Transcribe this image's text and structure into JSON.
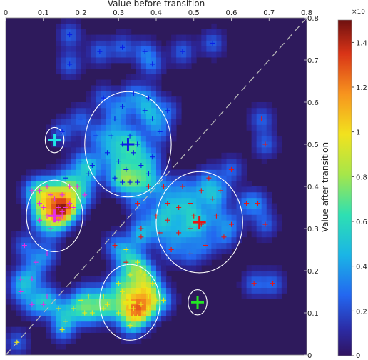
{
  "chart_data": {
    "type": "heatmap",
    "xlabel": "Value before transition",
    "ylabel": "Value after transition",
    "xlim": [
      0,
      0.8
    ],
    "ylim": [
      0,
      0.8
    ],
    "x_ticks": [
      "0",
      "0.1",
      "0.2",
      "0.3",
      "0.4",
      "0.5",
      "0.6",
      "0.7",
      "0.8"
    ],
    "y_ticks": [
      "0",
      "0.1",
      "0.2",
      "0.3",
      "0.4",
      "0.5",
      "0.6",
      "0.7",
      "0.8"
    ],
    "colorbar": {
      "ticks": [
        "0",
        "0.2",
        "0.4",
        "0.6",
        "0.8",
        "1",
        "1.2",
        "1.4"
      ],
      "multiplier_label": "×10",
      "range": [
        0,
        1.5
      ]
    },
    "diagonal": {
      "style": "dashed",
      "color": "#bbbbbb"
    },
    "series": [
      {
        "color": "#0a1ee6",
        "centroid": [
          0.325,
          0.5
        ],
        "circle_radius": [
          0.115,
          0.125
        ],
        "points": [
          [
            0.17,
            0.76
          ],
          [
            0.17,
            0.69
          ],
          [
            0.25,
            0.72
          ],
          [
            0.31,
            0.73
          ],
          [
            0.37,
            0.72
          ],
          [
            0.39,
            0.69
          ],
          [
            0.47,
            0.72
          ],
          [
            0.55,
            0.74
          ],
          [
            0.15,
            0.53
          ],
          [
            0.2,
            0.56
          ],
          [
            0.26,
            0.61
          ],
          [
            0.29,
            0.56
          ],
          [
            0.24,
            0.52
          ],
          [
            0.28,
            0.52
          ],
          [
            0.31,
            0.59
          ],
          [
            0.34,
            0.62
          ],
          [
            0.38,
            0.61
          ],
          [
            0.39,
            0.56
          ],
          [
            0.41,
            0.53
          ],
          [
            0.43,
            0.58
          ],
          [
            0.31,
            0.5
          ],
          [
            0.33,
            0.52
          ],
          [
            0.35,
            0.5
          ],
          [
            0.34,
            0.48
          ],
          [
            0.3,
            0.46
          ],
          [
            0.32,
            0.44
          ],
          [
            0.29,
            0.42
          ],
          [
            0.31,
            0.41
          ],
          [
            0.33,
            0.41
          ],
          [
            0.35,
            0.41
          ],
          [
            0.38,
            0.43
          ],
          [
            0.39,
            0.47
          ],
          [
            0.36,
            0.45
          ],
          [
            0.27,
            0.48
          ],
          [
            0.23,
            0.45
          ],
          [
            0.2,
            0.46
          ],
          [
            0.16,
            0.42
          ],
          [
            0.22,
            0.43
          ],
          [
            0.37,
            0.58
          ]
        ]
      },
      {
        "color": "#e61414",
        "centroid": [
          0.515,
          0.315
        ],
        "circle_radius": [
          0.115,
          0.12
        ],
        "points": [
          [
            0.68,
            0.56
          ],
          [
            0.69,
            0.5
          ],
          [
            0.6,
            0.44
          ],
          [
            0.54,
            0.42
          ],
          [
            0.55,
            0.37
          ],
          [
            0.52,
            0.39
          ],
          [
            0.47,
            0.4
          ],
          [
            0.42,
            0.4
          ],
          [
            0.38,
            0.4
          ],
          [
            0.43,
            0.36
          ],
          [
            0.46,
            0.35
          ],
          [
            0.5,
            0.33
          ],
          [
            0.52,
            0.31
          ],
          [
            0.49,
            0.3
          ],
          [
            0.46,
            0.29
          ],
          [
            0.43,
            0.32
          ],
          [
            0.4,
            0.33
          ],
          [
            0.41,
            0.29
          ],
          [
            0.36,
            0.3
          ],
          [
            0.35,
            0.36
          ],
          [
            0.36,
            0.28
          ],
          [
            0.44,
            0.25
          ],
          [
            0.49,
            0.24
          ],
          [
            0.53,
            0.26
          ],
          [
            0.58,
            0.28
          ],
          [
            0.6,
            0.31
          ],
          [
            0.56,
            0.33
          ],
          [
            0.57,
            0.39
          ],
          [
            0.64,
            0.36
          ],
          [
            0.67,
            0.36
          ],
          [
            0.69,
            0.31
          ],
          [
            0.66,
            0.17
          ],
          [
            0.71,
            0.17
          ],
          [
            0.29,
            0.26
          ],
          [
            0.32,
            0.22
          ],
          [
            0.49,
            0.36
          ]
        ]
      },
      {
        "color": "#e62de6",
        "centroid": [
          0.13,
          0.33
        ],
        "circle_radius": [
          0.075,
          0.085
        ],
        "points": [
          [
            0.07,
            0.39
          ],
          [
            0.09,
            0.39
          ],
          [
            0.11,
            0.4
          ],
          [
            0.12,
            0.38
          ],
          [
            0.13,
            0.37
          ],
          [
            0.15,
            0.38
          ],
          [
            0.17,
            0.4
          ],
          [
            0.19,
            0.4
          ],
          [
            0.21,
            0.38
          ],
          [
            0.1,
            0.35
          ],
          [
            0.11,
            0.33
          ],
          [
            0.14,
            0.35
          ],
          [
            0.15,
            0.34
          ],
          [
            0.16,
            0.35
          ],
          [
            0.12,
            0.3
          ],
          [
            0.14,
            0.32
          ],
          [
            0.09,
            0.36
          ],
          [
            0.15,
            0.33
          ],
          [
            0.05,
            0.26
          ],
          [
            0.08,
            0.22
          ],
          [
            0.11,
            0.24
          ],
          [
            0.09,
            0.32
          ],
          [
            0.04,
            0.18
          ],
          [
            0.04,
            0.15
          ],
          [
            0.07,
            0.18
          ],
          [
            0.07,
            0.12
          ],
          [
            0.1,
            0.12
          ],
          [
            0.11,
            0.14
          ],
          [
            0.18,
            0.35
          ],
          [
            0.17,
            0.36
          ]
        ]
      },
      {
        "color": "#ebe619",
        "centroid": [
          0.33,
          0.125
        ],
        "circle_radius": [
          0.08,
          0.09
        ],
        "points": [
          [
            0.32,
            0.25
          ],
          [
            0.35,
            0.22
          ],
          [
            0.37,
            0.19
          ],
          [
            0.33,
            0.19
          ],
          [
            0.3,
            0.17
          ],
          [
            0.31,
            0.15
          ],
          [
            0.33,
            0.14
          ],
          [
            0.35,
            0.15
          ],
          [
            0.37,
            0.16
          ],
          [
            0.39,
            0.17
          ],
          [
            0.38,
            0.14
          ],
          [
            0.36,
            0.12
          ],
          [
            0.34,
            0.11
          ],
          [
            0.32,
            0.12
          ],
          [
            0.3,
            0.1
          ],
          [
            0.34,
            0.09
          ],
          [
            0.33,
            0.07
          ],
          [
            0.38,
            0.11
          ],
          [
            0.4,
            0.13
          ],
          [
            0.42,
            0.13
          ],
          [
            0.37,
            0.1
          ],
          [
            0.27,
            0.12
          ],
          [
            0.26,
            0.14
          ],
          [
            0.22,
            0.14
          ],
          [
            0.21,
            0.1
          ],
          [
            0.23,
            0.1
          ],
          [
            0.26,
            0.11
          ],
          [
            0.14,
            0.11
          ],
          [
            0.18,
            0.11
          ],
          [
            0.16,
            0.08
          ],
          [
            0.15,
            0.06
          ],
          [
            0.03,
            0.03
          ],
          [
            0.2,
            0.13
          ],
          [
            0.36,
            0.2
          ],
          [
            0.35,
            0.09
          ]
        ]
      },
      {
        "color": "#1fe6e6",
        "centroid": [
          0.13,
          0.51
        ],
        "circle_radius": [
          0.025,
          0.03
        ],
        "points": []
      },
      {
        "color": "#23e623",
        "centroid": [
          0.51,
          0.125
        ],
        "circle_radius": [
          0.025,
          0.03
        ],
        "points": []
      }
    ]
  }
}
